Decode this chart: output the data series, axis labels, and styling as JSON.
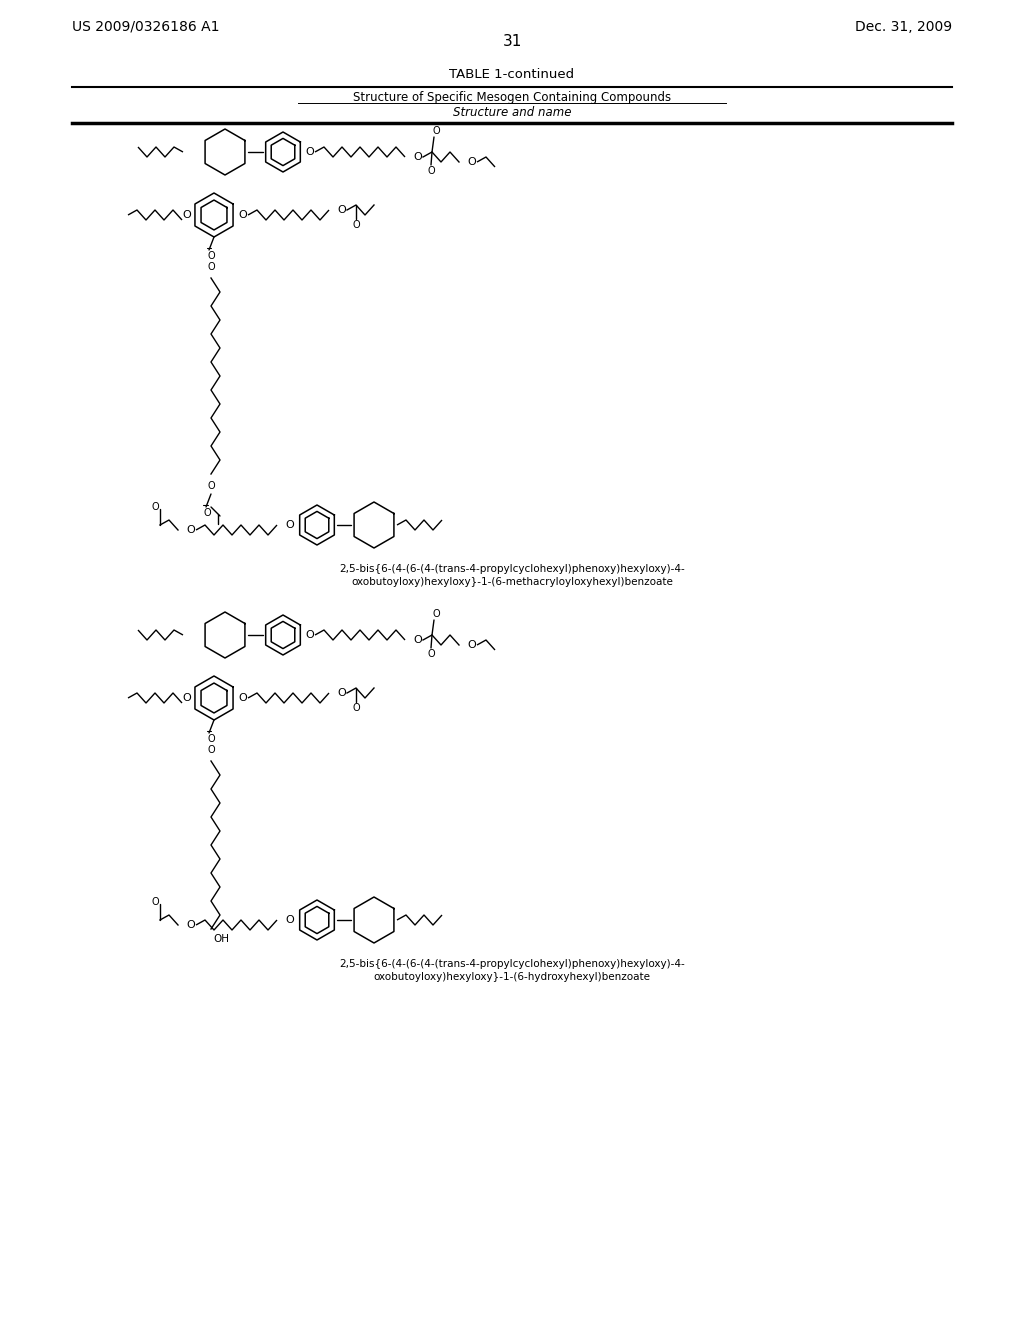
{
  "page_num": "31",
  "patent_left": "US 2009/0326186 A1",
  "patent_right": "Dec. 31, 2009",
  "table_title": "TABLE 1-continued",
  "table_subtitle": "Structure of Specific Mesogen Containing Compounds",
  "table_col": "Structure and name",
  "caption1_line1": "2,5-bis{6-(4-(6-(4-(trans-4-propylcyclohexyl)phenoxy)hexyloxy)-4-",
  "caption1_line2": "oxobutoyloxy)hexyloxy}-1-(6-methacryloyloxyhexyl)benzoate",
  "caption2_line1": "2,5-bis{6-(4-(6-(4-(trans-4-propylcyclohexyl)phenoxy)hexyloxy)-4-",
  "caption2_line2": "oxobutoyloxy)hexyloxy}-1-(6-hydroxyhexyl)benzoate",
  "bg_color": "#ffffff",
  "line_color": "#000000"
}
